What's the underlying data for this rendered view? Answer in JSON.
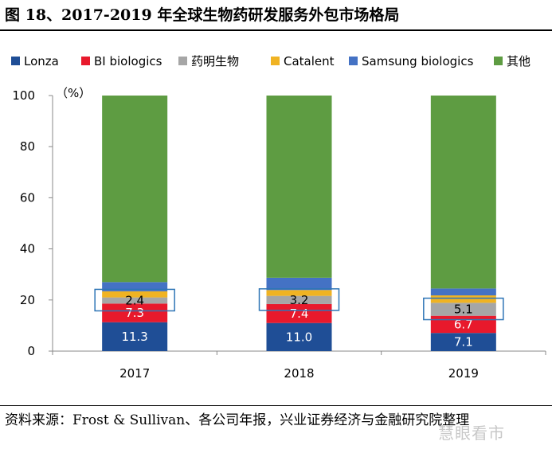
{
  "title": "图 18、2017-2019 年全球生物药研发服务外包市场格局",
  "source": "资料来源：Frost & Sullivan、各公司年报，兴业证券经济与金融研究院整理",
  "watermark": "慧眼看市",
  "chart_data": {
    "type": "bar",
    "stacked": true,
    "categories": [
      "2017",
      "2018",
      "2019"
    ],
    "y_unit_label": "（%）",
    "ylim": [
      0,
      100
    ],
    "yticks": [
      0,
      20,
      40,
      60,
      80,
      100
    ],
    "grid": false,
    "legend_position": "top",
    "series": [
      {
        "name": "Lonza",
        "color": "#1f4e96",
        "values": [
          11.3,
          11.0,
          7.1
        ],
        "labels": [
          "11.3",
          "11.0",
          "7.1"
        ],
        "label_color": "#ffffff"
      },
      {
        "name": "BI biologics",
        "color": "#e8192c",
        "values": [
          7.3,
          7.4,
          6.7
        ],
        "labels": [
          "7.3",
          "7.4",
          "6.7"
        ],
        "label_color": "#ffffff"
      },
      {
        "name": "药明生物",
        "color": "#a6a6a6",
        "values": [
          2.4,
          3.2,
          5.1
        ],
        "labels": [
          "2.4",
          "3.2",
          "5.1"
        ],
        "label_color": "#000000"
      },
      {
        "name": "Catalent",
        "color": "#f0b323",
        "values": [
          2.4,
          2.3,
          2.9
        ],
        "labels": null,
        "label_color": "#000000"
      },
      {
        "name": "Samsung biologics",
        "color": "#4472c4",
        "values": [
          3.6,
          4.8,
          2.7
        ],
        "labels": null,
        "label_color": "#000000"
      },
      {
        "name": "其他",
        "color": "#5e9c42",
        "values": [
          73.0,
          71.3,
          75.5
        ],
        "labels": null,
        "label_color": "#000000"
      }
    ],
    "highlight_box_color": "#2e75b6"
  }
}
